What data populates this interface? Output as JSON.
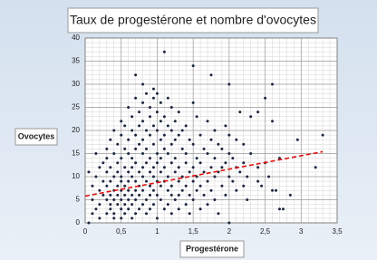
{
  "chart_data": {
    "type": "scatter",
    "title": "Taux de progestérone et nombre d'ovocytes",
    "x_label": "Progestérone",
    "y_label": "Ovocytes",
    "xlim": [
      0,
      3.5
    ],
    "ylim": [
      0,
      40
    ],
    "xticks": [
      0,
      {
        "value": 0.5,
        "label": "0,5"
      },
      1,
      {
        "value": 1.5,
        "label": "1,5"
      },
      2,
      {
        "value": 2.5,
        "label": "2,5"
      },
      3,
      {
        "value": 3.5,
        "label": "3,5"
      }
    ],
    "yticks": [
      0,
      5,
      10,
      15,
      20,
      25,
      30,
      35,
      40
    ],
    "grid": true,
    "series": [
      {
        "color": "#1c2740",
        "x": [
          0.05,
          0.05,
          0.1,
          0.1,
          0.1,
          0.15,
          0.15,
          0.15,
          0.2,
          0.2,
          0.2,
          0.2,
          0.25,
          0.25,
          0.25,
          0.3,
          0.3,
          0.3,
          0.3,
          0.3,
          0.3,
          0.35,
          0.35,
          0.35,
          0.35,
          0.35,
          0.35,
          0.4,
          0.4,
          0.4,
          0.4,
          0.4,
          0.4,
          0.4,
          0.45,
          0.45,
          0.45,
          0.45,
          0.45,
          0.45,
          0.5,
          0.5,
          0.5,
          0.5,
          0.5,
          0.5,
          0.5,
          0.5,
          0.5,
          0.55,
          0.55,
          0.55,
          0.55,
          0.55,
          0.55,
          0.55,
          0.6,
          0.6,
          0.6,
          0.6,
          0.6,
          0.6,
          0.6,
          0.6,
          0.65,
          0.65,
          0.65,
          0.65,
          0.65,
          0.65,
          0.65,
          0.65,
          0.7,
          0.7,
          0.7,
          0.7,
          0.7,
          0.7,
          0.7,
          0.7,
          0.7,
          0.75,
          0.75,
          0.75,
          0.75,
          0.75,
          0.75,
          0.75,
          0.8,
          0.8,
          0.8,
          0.8,
          0.8,
          0.8,
          0.8,
          0.8,
          0.8,
          0.85,
          0.85,
          0.85,
          0.85,
          0.85,
          0.85,
          0.85,
          0.9,
          0.9,
          0.9,
          0.9,
          0.9,
          0.9,
          0.9,
          0.9,
          0.95,
          0.95,
          0.95,
          0.95,
          0.95,
          0.95,
          0.95,
          0.95,
          1,
          1,
          1,
          1,
          1,
          1,
          1,
          1,
          1.05,
          1.05,
          1.05,
          1.05,
          1.05,
          1.05,
          1.05,
          1.1,
          1.1,
          1.1,
          1.1,
          1.1,
          1.1,
          1.1,
          1.15,
          1.15,
          1.15,
          1.15,
          1.15,
          1.15,
          1.2,
          1.2,
          1.2,
          1.2,
          1.2,
          1.2,
          1.2,
          1.25,
          1.25,
          1.25,
          1.25,
          1.25,
          1.3,
          1.3,
          1.3,
          1.3,
          1.3,
          1.3,
          1.35,
          1.35,
          1.35,
          1.35,
          1.4,
          1.4,
          1.4,
          1.4,
          1.4,
          1.45,
          1.45,
          1.45,
          1.45,
          1.5,
          1.5,
          1.5,
          1.5,
          1.5,
          1.5,
          1.55,
          1.55,
          1.55,
          1.55,
          1.6,
          1.6,
          1.6,
          1.6,
          1.65,
          1.65,
          1.65,
          1.7,
          1.7,
          1.7,
          1.7,
          1.75,
          1.75,
          1.75,
          1.75,
          1.8,
          1.8,
          1.8,
          1.8,
          1.85,
          1.85,
          1.85,
          1.9,
          1.9,
          1.9,
          1.95,
          1.95,
          1.95,
          2,
          2,
          2,
          2,
          2,
          2.05,
          2.05,
          2.1,
          2.1,
          2.1,
          2.15,
          2.15,
          2.2,
          2.2,
          2.2,
          2.25,
          2.25,
          2.3,
          2.3,
          2.4,
          2.4,
          2.4,
          2.45,
          2.5,
          2.5,
          2.55,
          2.6,
          2.6,
          2.6,
          2.65,
          2.7,
          2.7,
          2.75,
          2.85,
          2.95,
          3.2,
          3.3
        ],
        "values": [
          11,
          0,
          8,
          5,
          2,
          15,
          10,
          3,
          12,
          7,
          4,
          1,
          9,
          6,
          13,
          16,
          11,
          8,
          5,
          2,
          14,
          18,
          12,
          9,
          6,
          4,
          3,
          20,
          15,
          10,
          7,
          5,
          2,
          1,
          17,
          13,
          11,
          8,
          6,
          4,
          22,
          19,
          14,
          10,
          9,
          7,
          5,
          3,
          1,
          21,
          16,
          12,
          8,
          6,
          4,
          2,
          25,
          18,
          15,
          11,
          9,
          7,
          5,
          3,
          23,
          20,
          14,
          12,
          10,
          6,
          4,
          1,
          32,
          27,
          19,
          16,
          13,
          9,
          7,
          5,
          2,
          24,
          21,
          17,
          11,
          8,
          6,
          3,
          30,
          26,
          22,
          18,
          15,
          12,
          10,
          7,
          4,
          28,
          20,
          16,
          13,
          9,
          5,
          2,
          25,
          23,
          19,
          14,
          11,
          8,
          6,
          3,
          29,
          27,
          21,
          17,
          12,
          10,
          7,
          4,
          28,
          24,
          20,
          15,
          13,
          9,
          6,
          1,
          26,
          22,
          18,
          14,
          11,
          8,
          5,
          37,
          23,
          19,
          16,
          12,
          9,
          3,
          27,
          21,
          15,
          10,
          7,
          4,
          25,
          20,
          17,
          13,
          8,
          6,
          2,
          22,
          18,
          14,
          11,
          5,
          24,
          19,
          12,
          9,
          6,
          3,
          20,
          16,
          10,
          7,
          21,
          15,
          13,
          8,
          4,
          18,
          11,
          6,
          2,
          34,
          26,
          17,
          12,
          9,
          5,
          23,
          14,
          10,
          7,
          19,
          13,
          8,
          3,
          16,
          11,
          6,
          22,
          15,
          9,
          4,
          32,
          18,
          12,
          7,
          20,
          14,
          10,
          5,
          17,
          11,
          2,
          16,
          12,
          8,
          21,
          13,
          6,
          30,
          19,
          15,
          10,
          0,
          14,
          9,
          18,
          12,
          7,
          24,
          11,
          17,
          13,
          8,
          10,
          5,
          23,
          15,
          24,
          12,
          9,
          8,
          27,
          13,
          10,
          30,
          22,
          7,
          7,
          14,
          3,
          3,
          6,
          18,
          12,
          19
        ]
      }
    ],
    "trendline": {
      "x": [
        0,
        3.3
      ],
      "y": [
        5.8,
        15.4
      ],
      "color": "#e01010"
    }
  }
}
